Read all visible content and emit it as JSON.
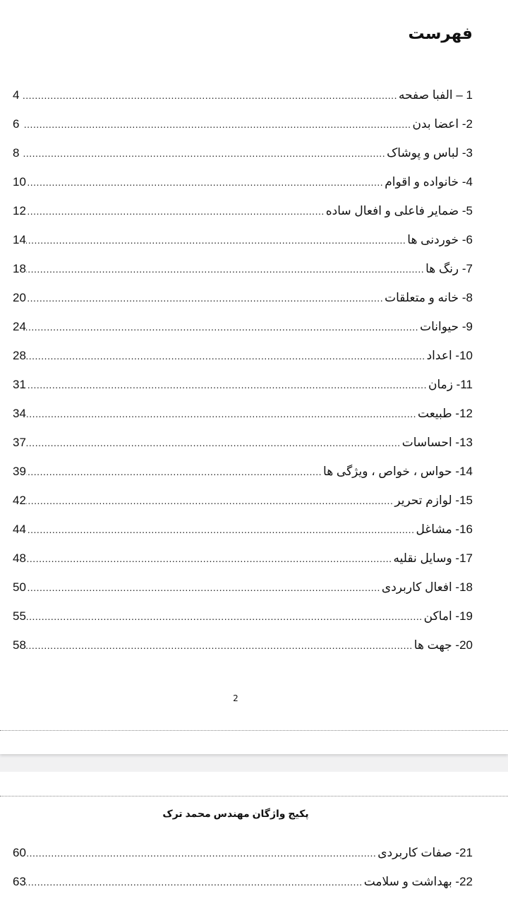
{
  "page1": {
    "title": "فهرست",
    "entries": [
      {
        "label": "1 – الفبا  صفحه",
        "page": "4"
      },
      {
        "label": "2-  اعضا بدن",
        "page": "6"
      },
      {
        "label": "3- لباس و پوشاک",
        "page": "8"
      },
      {
        "label": "4- خانواده و اقوام",
        "page": "10"
      },
      {
        "label": "5- ضمایر فاعلی و افعال ساده",
        "page": "12"
      },
      {
        "label": "6- خوردنی ها",
        "page": "14"
      },
      {
        "label": "7- رنگ ها",
        "page": "18"
      },
      {
        "label": "8- خانه و متعلقات",
        "page": "20"
      },
      {
        "label": "9- حیوانات",
        "page": "24"
      },
      {
        "label": "10- اعداد",
        "page": "28"
      },
      {
        "label": "11-  زمان",
        "page": "31"
      },
      {
        "label": "12- طبیعت",
        "page": "34"
      },
      {
        "label": "13- احساسات",
        "page": "37"
      },
      {
        "label": "14- حواس ، خواص ، ویژگی ها",
        "page": "39"
      },
      {
        "label": "15- لوازم تحریر",
        "page": "42"
      },
      {
        "label": "16- مشاغل",
        "page": "44"
      },
      {
        "label": "17- وسایل نقلیه",
        "page": "48"
      },
      {
        "label": "18- افعال کاربردی",
        "page": "50"
      },
      {
        "label": "19- اماکن",
        "page": "55"
      },
      {
        "label": "20- جهت ها",
        "page": "58"
      }
    ],
    "page_number": "2"
  },
  "page2": {
    "header": "پکیج واژگان مهندس محمد ترک",
    "entries": [
      {
        "label": "21- صفات کاربردی",
        "page": "60"
      },
      {
        "label": "22- بهداشت و سلامت",
        "page": "63"
      }
    ]
  }
}
